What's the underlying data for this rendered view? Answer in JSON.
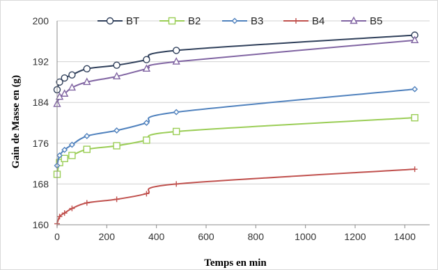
{
  "chart_data": {
    "type": "line",
    "title": "",
    "xlabel": "Temps en min",
    "ylabel": "Gain de Masse en (g)",
    "xlim": [
      0,
      1500
    ],
    "ylim": [
      160,
      200
    ],
    "xticks": [
      0,
      200,
      400,
      600,
      800,
      1000,
      1200,
      1400
    ],
    "yticks": [
      160,
      168,
      176,
      184,
      192,
      200
    ],
    "grid": "horizontal",
    "legend_position": "top",
    "x": [
      0,
      10,
      30,
      60,
      120,
      240,
      360,
      480,
      1440
    ],
    "series": [
      {
        "name": "BT",
        "marker": "circle",
        "color": "#2f3f5a",
        "values": [
          186.5,
          188.0,
          188.8,
          189.4,
          190.6,
          191.3,
          192.4,
          194.2,
          197.2
        ]
      },
      {
        "name": "B2",
        "marker": "square",
        "color": "#9acd55",
        "values": [
          169.9,
          172.2,
          173.0,
          173.6,
          174.8,
          175.5,
          176.6,
          178.3,
          181.0
        ]
      },
      {
        "name": "B3",
        "marker": "diamond",
        "color": "#4f81bd",
        "values": [
          171.6,
          173.6,
          174.7,
          175.7,
          177.4,
          178.5,
          180.0,
          182.1,
          186.6
        ]
      },
      {
        "name": "B4",
        "marker": "plus",
        "color": "#c0504d",
        "values": [
          160.2,
          161.6,
          162.3,
          163.2,
          164.3,
          165.0,
          166.1,
          168.0,
          170.9
        ]
      },
      {
        "name": "B5",
        "marker": "triangle",
        "color": "#8064a2",
        "values": [
          183.7,
          185.1,
          185.7,
          186.9,
          188.0,
          189.1,
          190.6,
          192.0,
          196.2
        ]
      }
    ]
  }
}
